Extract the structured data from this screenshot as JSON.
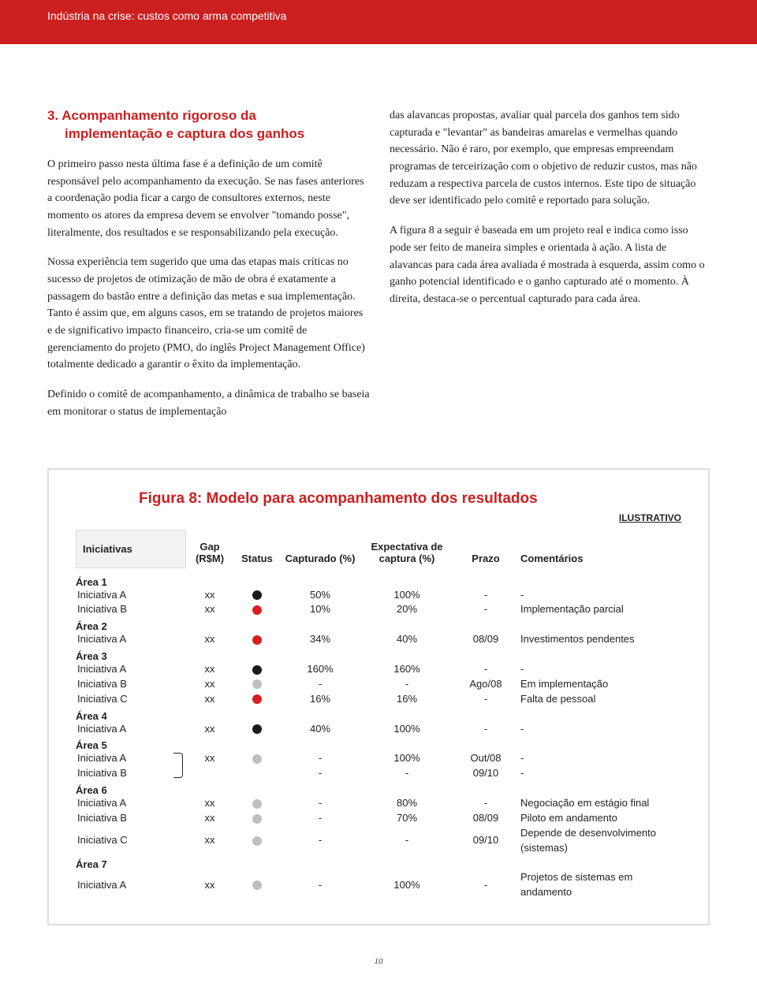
{
  "header": {
    "title": "Indústria na crise: custos como arma competitiva"
  },
  "section": {
    "number": "3.",
    "title_l1": "Acompanhamento rigoroso da",
    "title_l2": "implementação e captura dos ganhos"
  },
  "left": {
    "p1": "O primeiro passo nesta última fase é a definição de um comitê responsável pelo acompanhamento da execução. Se nas fases anteriores a coordenação podia ficar a cargo de consultores externos, neste momento os atores da empresa devem se envolver \"tomando posse\", literalmente, dos resultados e se responsabilizando pela execução.",
    "p2": "Nossa experiência tem sugerido que uma das etapas mais críticas no sucesso de projetos de otimização de mão de obra é exatamente a passagem do bastão entre a definição das metas e sua implementação. Tanto é assim que, em alguns casos, em se tratando de projetos maiores e de significativo impacto financeiro, cria-se um comitê de gerenciamento do projeto (PMO, do inglês Project Management Office) totalmente dedicado a garantir o êxito da implementação."
  },
  "bridge": "Definido o comitê de acompanhamento, a dinâmica de trabalho se baseia em monitorar o status de implementação",
  "right": {
    "p1": "das alavancas propostas, avaliar qual parcela dos ganhos tem sido capturada e \"levantar\" as bandeiras amarelas e vermelhas quando necessário. Não é raro, por exemplo, que empresas empreendam programas de terceirização com o objetivo de reduzir custos, mas não reduzam a respectiva parcela de custos internos.  Este tipo de situação deve ser identificado pelo comitê e reportado para solução.",
    "p2": "A figura 8 a seguir é baseada em um projeto real e indica como isso pode ser feito de maneira simples e orientada à ação. A lista de alavancas para cada área avaliada é mostrada à esquerda, assim como o ganho potencial identificado e o ganho capturado até o momento. À direita, destaca-se o percentual capturado para cada área."
  },
  "figure": {
    "title": "Figura 8: Modelo para acompanhamento dos resultados",
    "tag": "ILUSTRATIVO",
    "headers": {
      "init": "Iniciativas",
      "gap": "Gap (R$M)",
      "status": "Status",
      "capt": "Capturado (%)",
      "exp": "Expectativa de captura (%)",
      "prazo": "Prazo",
      "com": "Comentários"
    },
    "status_colors": {
      "black": "#1a1a1a",
      "red": "#d62020",
      "grey": "#bfbfbf"
    },
    "areas": [
      {
        "label": "Área 1",
        "rows": [
          {
            "name": "Iniciativa A",
            "gap": "xx",
            "status": "black",
            "capt": "50%",
            "exp": "100%",
            "prazo": "-",
            "com": "-"
          },
          {
            "name": "Iniciativa B",
            "gap": "xx",
            "status": "red",
            "capt": "10%",
            "exp": "20%",
            "prazo": "-",
            "com": "Implementação parcial"
          }
        ]
      },
      {
        "label": "Área 2",
        "rows": [
          {
            "name": "Iniciativa A",
            "gap": "xx",
            "status": "red",
            "capt": "34%",
            "exp": "40%",
            "prazo": "08/09",
            "com": "Investimentos pendentes"
          }
        ]
      },
      {
        "label": "Área 3",
        "rows": [
          {
            "name": "Iniciativa A",
            "gap": "xx",
            "status": "black",
            "capt": "160%",
            "exp": "160%",
            "prazo": "-",
            "com": "-"
          },
          {
            "name": "Iniciativa B",
            "gap": "xx",
            "status": "grey",
            "capt": "-",
            "exp": "-",
            "prazo": "Ago/08",
            "com": "Em implementação"
          },
          {
            "name": "Iniciativa C",
            "gap": "xx",
            "status": "red",
            "capt": "16%",
            "exp": "16%",
            "prazo": "-",
            "com": "Falta de pessoal"
          }
        ]
      },
      {
        "label": "Área 4",
        "rows": [
          {
            "name": "Iniciativa A",
            "gap": "xx",
            "status": "black",
            "capt": "40%",
            "exp": "100%",
            "prazo": "-",
            "com": "-"
          }
        ]
      },
      {
        "label": "Área 5",
        "bracket_gap": "xx",
        "rows": [
          {
            "name": "Iniciativa A",
            "gap": "",
            "status": "grey",
            "capt": "-",
            "exp": "100%",
            "prazo": "Out/08",
            "com": "-"
          },
          {
            "name": "Iniciativa B",
            "gap": "",
            "status": "",
            "capt": "-",
            "exp": "-",
            "prazo": "09/10",
            "com": "-"
          }
        ]
      },
      {
        "label": "Área 6",
        "rows": [
          {
            "name": "Iniciativa A",
            "gap": "xx",
            "status": "grey",
            "capt": "-",
            "exp": "80%",
            "prazo": "-",
            "com": "Negociação em estágio final"
          },
          {
            "name": "Iniciativa B",
            "gap": "xx",
            "status": "grey",
            "capt": "-",
            "exp": "70%",
            "prazo": "08/09",
            "com": "Piloto em andamento"
          },
          {
            "name": "Iniciativa C",
            "gap": "xx",
            "status": "grey",
            "capt": "-",
            "exp": "-",
            "prazo": "09/10",
            "com": "Depende de desenvolvimento (sistemas)"
          }
        ]
      },
      {
        "label": "Área 7",
        "rows": [
          {
            "name": "Iniciativa A",
            "gap": "xx",
            "status": "grey",
            "capt": "-",
            "exp": "100%",
            "prazo": "-",
            "com": "Projetos de sistemas em andamento"
          }
        ]
      }
    ]
  },
  "page_number": "10"
}
